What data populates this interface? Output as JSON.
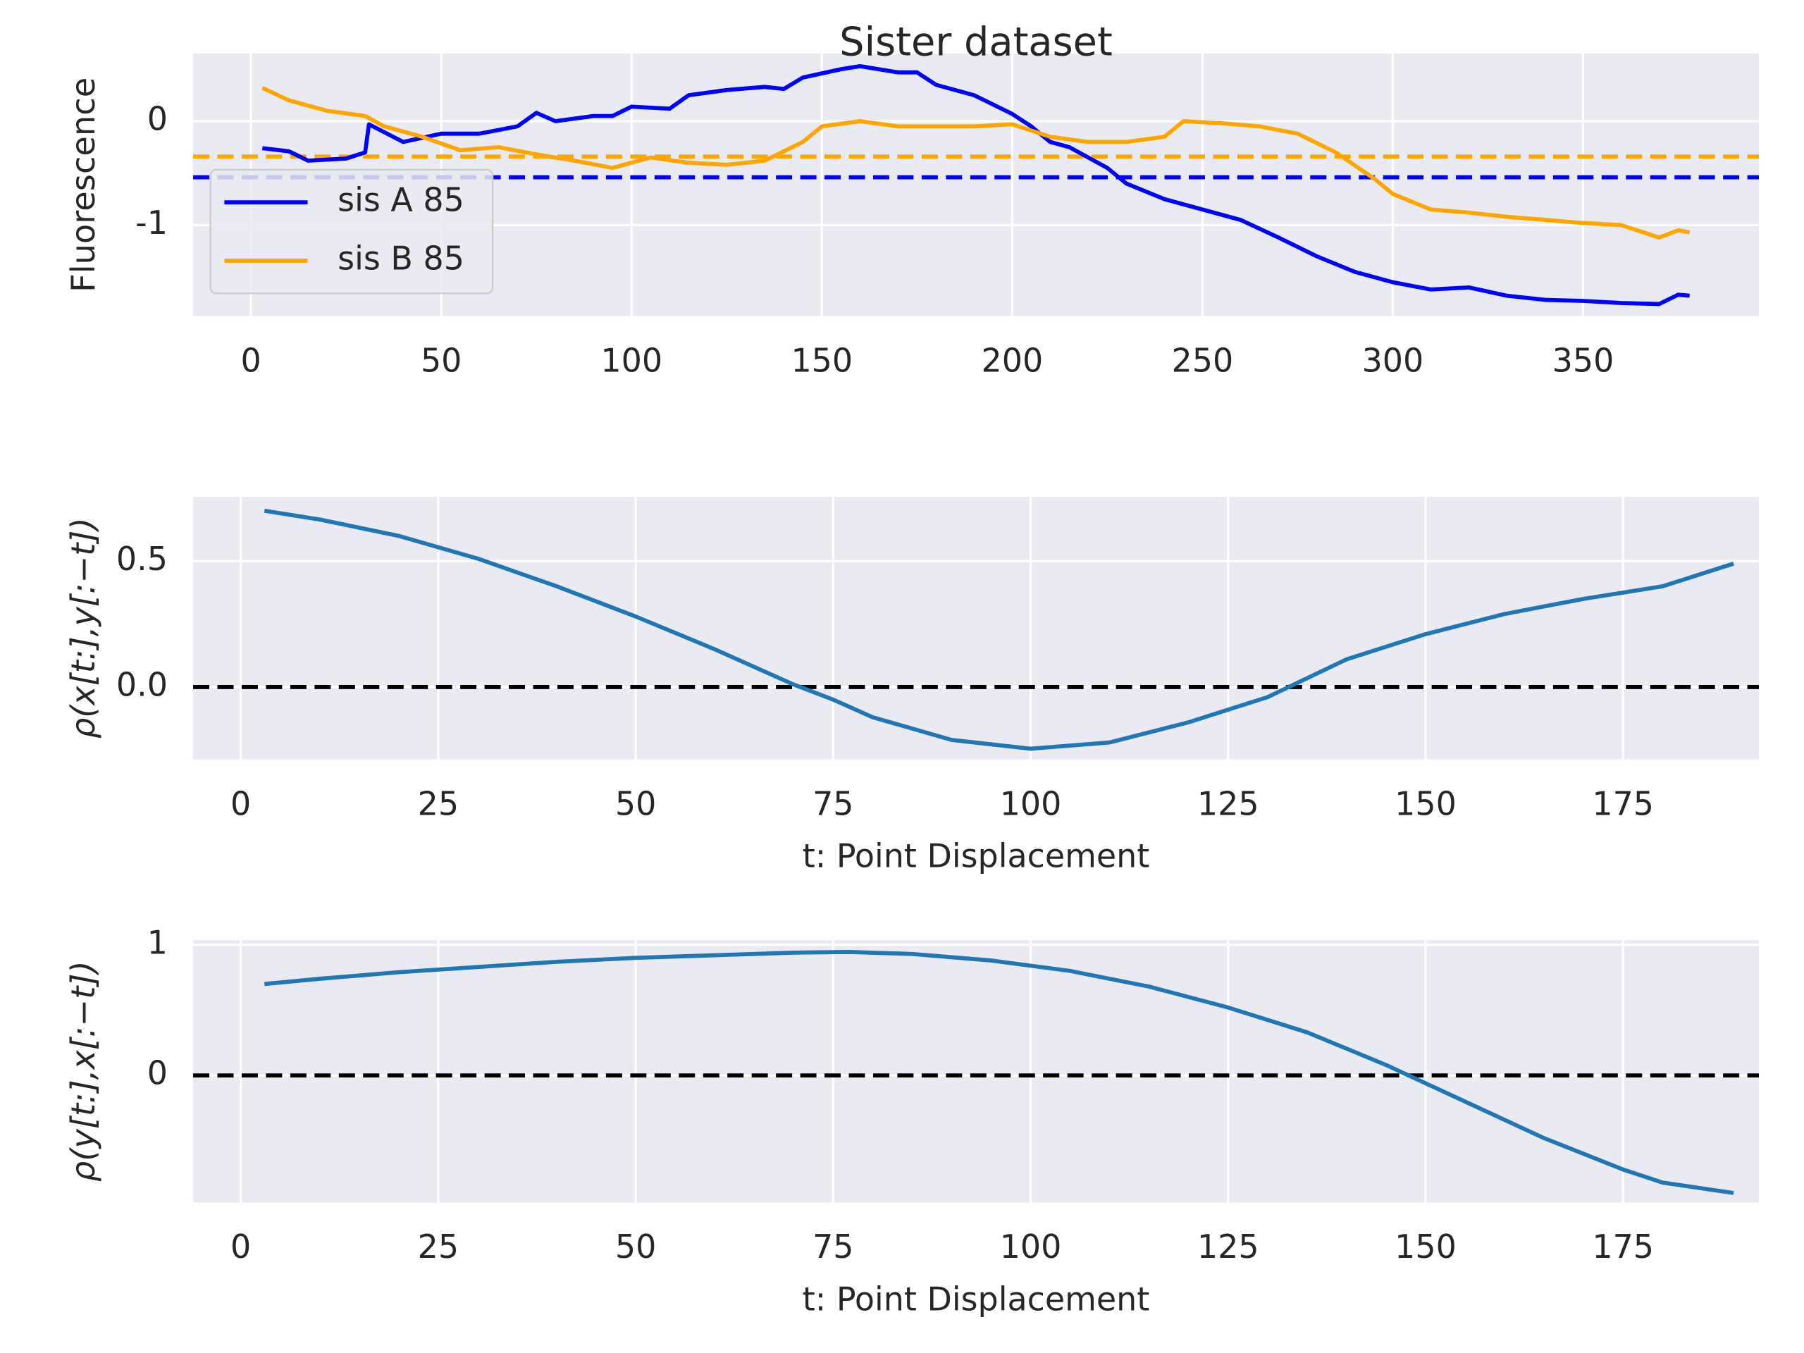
{
  "chart_data": [
    {
      "type": "line",
      "title": "Sister dataset",
      "ylabel": "Fluorescence",
      "xlim": [
        -15.2,
        396.2
      ],
      "ylim": [
        -1.876,
        0.65
      ],
      "xticks": [
        0,
        50,
        100,
        150,
        200,
        250,
        300,
        350
      ],
      "yticks": [
        -1,
        0
      ],
      "grid": true,
      "legend": "center left",
      "series": [
        {
          "name": "sis A 85",
          "color": "blue",
          "x": [
            3,
            10,
            15,
            25,
            30,
            31,
            40,
            50,
            60,
            70,
            75,
            80,
            90,
            95,
            100,
            110,
            115,
            125,
            135,
            140,
            145,
            155,
            160,
            170,
            175,
            180,
            190,
            200,
            205,
            210,
            215,
            225,
            230,
            240,
            250,
            260,
            270,
            280,
            290,
            300,
            310,
            320,
            330,
            340,
            350,
            360,
            370,
            375,
            378
          ],
          "values": [
            -0.26,
            -0.29,
            -0.38,
            -0.36,
            -0.3,
            -0.03,
            -0.2,
            -0.12,
            -0.12,
            -0.05,
            0.08,
            0.0,
            0.05,
            0.05,
            0.14,
            0.12,
            0.25,
            0.3,
            0.33,
            0.31,
            0.42,
            0.5,
            0.53,
            0.47,
            0.47,
            0.35,
            0.25,
            0.07,
            -0.05,
            -0.2,
            -0.25,
            -0.45,
            -0.6,
            -0.75,
            -0.85,
            -0.95,
            -1.12,
            -1.3,
            -1.45,
            -1.55,
            -1.62,
            -1.6,
            -1.68,
            -1.72,
            -1.73,
            -1.75,
            -1.76,
            -1.67,
            -1.68
          ]
        },
        {
          "name": "sis B 85",
          "color": "orange",
          "x": [
            3,
            10,
            20,
            30,
            35,
            45,
            55,
            65,
            75,
            85,
            95,
            105,
            115,
            125,
            135,
            145,
            150,
            160,
            170,
            180,
            190,
            200,
            210,
            220,
            230,
            240,
            245,
            255,
            265,
            275,
            285,
            295,
            300,
            310,
            320,
            330,
            340,
            350,
            360,
            370,
            375,
            378
          ],
          "values": [
            0.32,
            0.2,
            0.1,
            0.05,
            -0.05,
            -0.15,
            -0.28,
            -0.25,
            -0.32,
            -0.38,
            -0.45,
            -0.35,
            -0.4,
            -0.42,
            -0.38,
            -0.2,
            -0.05,
            0.0,
            -0.05,
            -0.05,
            -0.05,
            -0.03,
            -0.15,
            -0.2,
            -0.2,
            -0.15,
            0.0,
            -0.02,
            -0.05,
            -0.12,
            -0.3,
            -0.55,
            -0.7,
            -0.85,
            -0.88,
            -0.92,
            -0.95,
            -0.98,
            -1.0,
            -1.12,
            -1.05,
            -1.07
          ]
        }
      ],
      "hlines": [
        {
          "y": -0.54,
          "color": "blue",
          "linestyle": "dashed"
        },
        {
          "y": -0.34,
          "color": "orange",
          "linestyle": "dashed"
        }
      ]
    },
    {
      "type": "line",
      "xlabel": "t: Point Displacement",
      "ylabel": "ρ(x[t:],y[:−t])",
      "xlim": [
        -6.03,
        192.2
      ],
      "ylim": [
        -0.287,
        0.755
      ],
      "xticks": [
        0,
        25,
        50,
        75,
        100,
        125,
        150,
        175
      ],
      "yticks": [
        {
          "value": 0,
          "label": "0.0"
        },
        0.5
      ],
      "grid": true,
      "series": [
        {
          "color": "#1f77b4",
          "x": [
            3,
            10,
            20,
            30,
            40,
            50,
            60,
            70,
            75,
            80,
            90,
            100,
            110,
            120,
            130,
            140,
            150,
            160,
            170,
            180,
            189
          ],
          "values": [
            0.7,
            0.665,
            0.6,
            0.51,
            0.4,
            0.28,
            0.15,
            0.01,
            -0.05,
            -0.12,
            -0.21,
            -0.245,
            -0.22,
            -0.14,
            -0.04,
            0.11,
            0.21,
            0.29,
            0.35,
            0.4,
            0.49
          ]
        }
      ],
      "hlines": [
        {
          "y": 0,
          "color": "black",
          "linestyle": "dashed"
        }
      ]
    },
    {
      "type": "line",
      "xlabel": "t: Point Displacement",
      "ylabel": "ρ(y[t:],x[:−t])",
      "xlim": [
        -6.03,
        192.2
      ],
      "ylim": [
        -0.973,
        1.036
      ],
      "xticks": [
        0,
        25,
        50,
        75,
        100,
        125,
        150,
        175
      ],
      "yticks": [
        0,
        1
      ],
      "grid": true,
      "series": [
        {
          "color": "#1f77b4",
          "x": [
            3,
            10,
            20,
            30,
            40,
            50,
            60,
            70,
            77,
            85,
            95,
            105,
            115,
            125,
            135,
            145,
            155,
            165,
            175,
            180,
            189
          ],
          "values": [
            0.7,
            0.74,
            0.79,
            0.83,
            0.87,
            0.9,
            0.92,
            0.94,
            0.945,
            0.93,
            0.88,
            0.8,
            0.68,
            0.52,
            0.33,
            0.08,
            -0.2,
            -0.48,
            -0.72,
            -0.82,
            -0.9
          ]
        }
      ],
      "hlines": [
        {
          "y": 0,
          "color": "black",
          "linestyle": "dashed"
        }
      ]
    }
  ]
}
